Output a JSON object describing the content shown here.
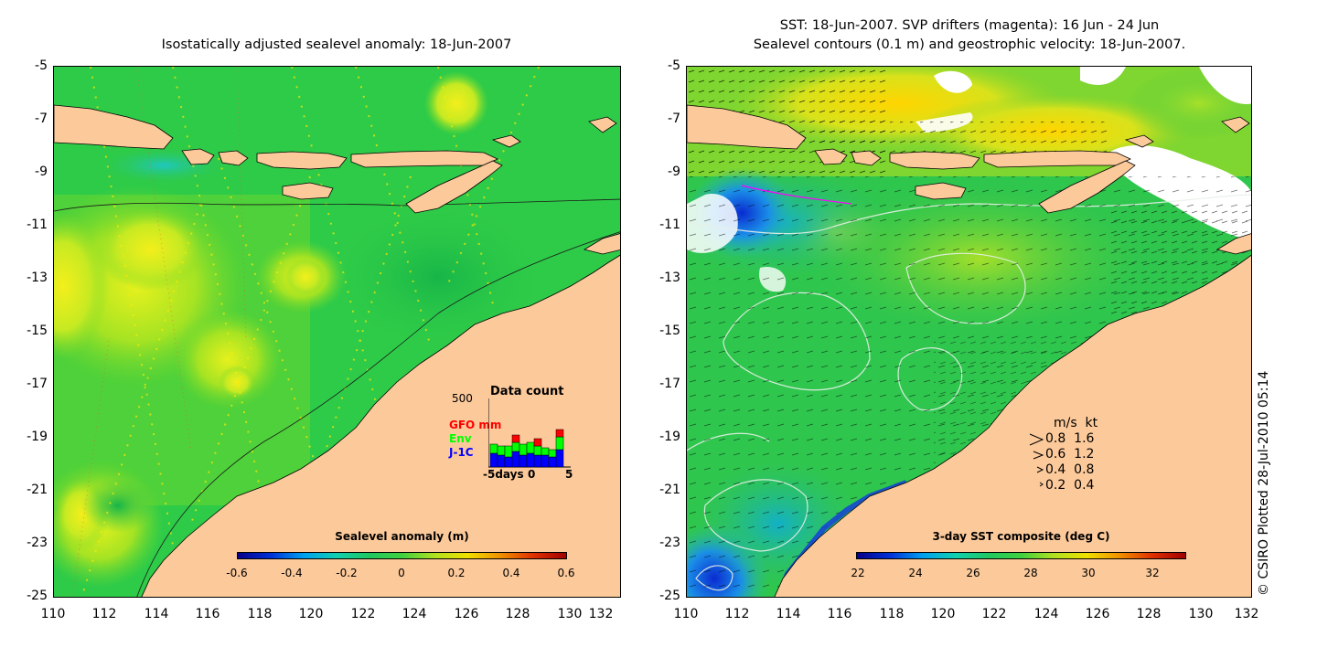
{
  "left_panel": {
    "title": "Isostatically adjusted sealevel anomaly: 18-Jun-2007",
    "y_ticks": [
      "-5",
      "-7",
      "-9",
      "-11",
      "-13",
      "-15",
      "-17",
      "-19",
      "-21",
      "-23",
      "-25"
    ],
    "x_ticks": [
      "110",
      "112",
      "114",
      "116",
      "118",
      "120",
      "122",
      "124",
      "126",
      "128",
      "130",
      "132"
    ],
    "colorbar": {
      "title": "Sealevel anomaly (m)",
      "ticks": [
        "-0.6",
        "-0.4",
        "-0.2",
        "0",
        "0.2",
        "0.4",
        "0.6"
      ]
    },
    "inset": {
      "title": "Data count",
      "y_max": "500",
      "legend": [
        {
          "label": "GFO mm",
          "color": "#ff0000"
        },
        {
          "label": "Env",
          "color": "#00ff00"
        },
        {
          "label": "J-1C",
          "color": "#0000ff"
        }
      ],
      "x_label_left": "-5days",
      "x_label_mid": "0",
      "x_label_right": "5"
    }
  },
  "right_panel": {
    "title_line1": "SST: 18-Jun-2007. SVP drifters (magenta): 16 Jun - 24 Jun",
    "title_line2": "Sealevel contours (0.1 m) and geostrophic velocity: 18-Jun-2007.",
    "y_ticks": [
      "-5",
      "-7",
      "-9",
      "-11",
      "-13",
      "-15",
      "-17",
      "-19",
      "-21",
      "-23",
      "-25"
    ],
    "x_ticks": [
      "110",
      "112",
      "114",
      "116",
      "118",
      "120",
      "122",
      "124",
      "126",
      "128",
      "130",
      "132"
    ],
    "colorbar": {
      "title": "3-day SST composite (deg C)",
      "ticks": [
        "22",
        "24",
        "26",
        "28",
        "30",
        "32"
      ]
    },
    "velocity_legend": {
      "header": "m/s  kt",
      "rows": [
        "0.8  1.6",
        "0.6  1.2",
        "0.4  0.8",
        "0.2  0.4"
      ]
    }
  },
  "credit": "© CSIRO Plotted 28-Jul-2010 05:14",
  "colors": {
    "land": "#fcc99a",
    "ocean_green": "#22c640",
    "anomaly_high": "#e9f21a",
    "sst_warm": "#ffd400",
    "sst_cool": "#0a3bd6"
  }
}
